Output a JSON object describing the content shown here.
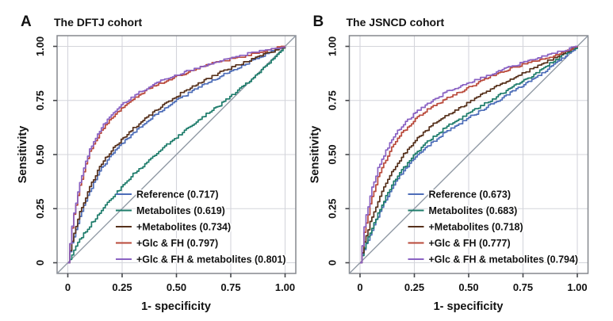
{
  "style": {
    "background": "#ffffff",
    "grid_color": "#d4d5db",
    "box_color": "#85888e",
    "diagonal_color": "#919aa5",
    "text_color": "#121212"
  },
  "chart_data": [
    {
      "type": "line",
      "subtype": "roc-curve",
      "panel_letter": "A",
      "title": "The DFTJ cohort",
      "xlabel": "1- specificity",
      "ylabel": "Sensitivity",
      "xlim": [
        0,
        1
      ],
      "ylim": [
        0,
        1
      ],
      "tick_values": [
        0,
        0.25,
        0.5,
        0.75,
        1
      ],
      "xtick_labels": [
        "0",
        "0.25",
        "0.50",
        "0.75",
        "1.00"
      ],
      "ytick_labels": [
        "0",
        "0.25",
        "0.50",
        "0.75",
        "1.00"
      ],
      "grid": true,
      "diagonal_reference_line": true,
      "legend_position": "inside-bottom-right",
      "series": [
        {
          "name": "Reference",
          "auc": 0.717,
          "legend_label": "Reference (0.717)",
          "color": "#4d6db8",
          "points": [
            [
              0,
              0
            ],
            [
              0.01,
              0.05
            ],
            [
              0.02,
              0.1
            ],
            [
              0.05,
              0.2
            ],
            [
              0.08,
              0.28
            ],
            [
              0.1,
              0.33
            ],
            [
              0.15,
              0.43
            ],
            [
              0.2,
              0.5
            ],
            [
              0.25,
              0.55
            ],
            [
              0.3,
              0.6
            ],
            [
              0.35,
              0.64
            ],
            [
              0.4,
              0.68
            ],
            [
              0.5,
              0.75
            ],
            [
              0.6,
              0.81
            ],
            [
              0.7,
              0.86
            ],
            [
              0.8,
              0.91
            ],
            [
              0.9,
              0.96
            ],
            [
              1,
              1
            ]
          ]
        },
        {
          "name": "Metabolites",
          "auc": 0.619,
          "legend_label": "Metabolites (0.619)",
          "color": "#1e7c6b",
          "points": [
            [
              0,
              0
            ],
            [
              0.01,
              0.02
            ],
            [
              0.02,
              0.04
            ],
            [
              0.05,
              0.1
            ],
            [
              0.1,
              0.17
            ],
            [
              0.15,
              0.24
            ],
            [
              0.2,
              0.3
            ],
            [
              0.25,
              0.35
            ],
            [
              0.3,
              0.41
            ],
            [
              0.35,
              0.45
            ],
            [
              0.4,
              0.5
            ],
            [
              0.5,
              0.58
            ],
            [
              0.6,
              0.66
            ],
            [
              0.7,
              0.73
            ],
            [
              0.8,
              0.81
            ],
            [
              0.9,
              0.9
            ],
            [
              1,
              1
            ]
          ]
        },
        {
          "name": "+Metabolites",
          "auc": 0.734,
          "legend_label": "+Metabolites (0.734)",
          "color": "#56301b",
          "points": [
            [
              0,
              0
            ],
            [
              0.01,
              0.06
            ],
            [
              0.02,
              0.11
            ],
            [
              0.05,
              0.22
            ],
            [
              0.08,
              0.3
            ],
            [
              0.1,
              0.35
            ],
            [
              0.15,
              0.45
            ],
            [
              0.2,
              0.52
            ],
            [
              0.25,
              0.57
            ],
            [
              0.3,
              0.62
            ],
            [
              0.35,
              0.66
            ],
            [
              0.4,
              0.7
            ],
            [
              0.5,
              0.77
            ],
            [
              0.6,
              0.83
            ],
            [
              0.7,
              0.88
            ],
            [
              0.8,
              0.92
            ],
            [
              0.9,
              0.96
            ],
            [
              1,
              1
            ]
          ]
        },
        {
          "name": "+Glc & FH",
          "auc": 0.797,
          "legend_label": "+Glc & FH (0.797)",
          "color": "#b9493a",
          "points": [
            [
              0,
              0
            ],
            [
              0.01,
              0.09
            ],
            [
              0.02,
              0.18
            ],
            [
              0.05,
              0.34
            ],
            [
              0.08,
              0.45
            ],
            [
              0.1,
              0.51
            ],
            [
              0.15,
              0.61
            ],
            [
              0.2,
              0.67
            ],
            [
              0.25,
              0.72
            ],
            [
              0.3,
              0.76
            ],
            [
              0.35,
              0.79
            ],
            [
              0.4,
              0.82
            ],
            [
              0.5,
              0.86
            ],
            [
              0.6,
              0.9
            ],
            [
              0.7,
              0.93
            ],
            [
              0.8,
              0.95
            ],
            [
              0.9,
              0.98
            ],
            [
              1,
              1
            ]
          ]
        },
        {
          "name": "+Glc & FH & metabolites",
          "auc": 0.801,
          "legend_label": "+Glc & FH & metabolites (0.801)",
          "color": "#8a62c3",
          "points": [
            [
              0,
              0
            ],
            [
              0.01,
              0.1
            ],
            [
              0.02,
              0.19
            ],
            [
              0.05,
              0.35
            ],
            [
              0.08,
              0.46
            ],
            [
              0.1,
              0.52
            ],
            [
              0.15,
              0.62
            ],
            [
              0.2,
              0.68
            ],
            [
              0.25,
              0.73
            ],
            [
              0.3,
              0.77
            ],
            [
              0.35,
              0.8
            ],
            [
              0.4,
              0.83
            ],
            [
              0.5,
              0.87
            ],
            [
              0.6,
              0.9
            ],
            [
              0.7,
              0.93
            ],
            [
              0.8,
              0.96
            ],
            [
              0.9,
              0.98
            ],
            [
              1,
              1
            ]
          ]
        }
      ]
    },
    {
      "type": "line",
      "subtype": "roc-curve",
      "panel_letter": "B",
      "title": "The JSNCD cohort",
      "xlabel": "1- specificity",
      "ylabel": "Sensitivity",
      "xlim": [
        0,
        1
      ],
      "ylim": [
        0,
        1
      ],
      "tick_values": [
        0,
        0.25,
        0.5,
        0.75,
        1
      ],
      "xtick_labels": [
        "0",
        "0.25",
        "0.50",
        "0.75",
        "1.00"
      ],
      "ytick_labels": [
        "0",
        "0.25",
        "0.50",
        "0.75",
        "1.00"
      ],
      "grid": true,
      "diagonal_reference_line": true,
      "legend_position": "inside-bottom-right",
      "series": [
        {
          "name": "Reference",
          "auc": 0.673,
          "legend_label": "Reference (0.673)",
          "color": "#4d6db8",
          "points": [
            [
              0,
              0
            ],
            [
              0.01,
              0.04
            ],
            [
              0.02,
              0.07
            ],
            [
              0.05,
              0.14
            ],
            [
              0.1,
              0.26
            ],
            [
              0.15,
              0.35
            ],
            [
              0.2,
              0.43
            ],
            [
              0.25,
              0.48
            ],
            [
              0.3,
              0.53
            ],
            [
              0.35,
              0.57
            ],
            [
              0.4,
              0.61
            ],
            [
              0.5,
              0.67
            ],
            [
              0.6,
              0.73
            ],
            [
              0.7,
              0.79
            ],
            [
              0.8,
              0.85
            ],
            [
              0.9,
              0.92
            ],
            [
              1,
              1
            ]
          ]
        },
        {
          "name": "Metabolites",
          "auc": 0.683,
          "legend_label": "Metabolites (0.683)",
          "color": "#1e7c6b",
          "points": [
            [
              0,
              0
            ],
            [
              0.01,
              0.04
            ],
            [
              0.02,
              0.08
            ],
            [
              0.05,
              0.15
            ],
            [
              0.1,
              0.27
            ],
            [
              0.15,
              0.37
            ],
            [
              0.2,
              0.44
            ],
            [
              0.25,
              0.5
            ],
            [
              0.3,
              0.55
            ],
            [
              0.35,
              0.59
            ],
            [
              0.4,
              0.63
            ],
            [
              0.5,
              0.69
            ],
            [
              0.6,
              0.75
            ],
            [
              0.7,
              0.81
            ],
            [
              0.8,
              0.87
            ],
            [
              0.9,
              0.94
            ],
            [
              1,
              1
            ]
          ]
        },
        {
          "name": "+Metabolites",
          "auc": 0.718,
          "legend_label": "+Metabolites (0.718)",
          "color": "#56301b",
          "points": [
            [
              0,
              0
            ],
            [
              0.01,
              0.05
            ],
            [
              0.02,
              0.1
            ],
            [
              0.05,
              0.2
            ],
            [
              0.1,
              0.33
            ],
            [
              0.15,
              0.43
            ],
            [
              0.2,
              0.5
            ],
            [
              0.25,
              0.56
            ],
            [
              0.3,
              0.61
            ],
            [
              0.35,
              0.65
            ],
            [
              0.4,
              0.68
            ],
            [
              0.5,
              0.74
            ],
            [
              0.6,
              0.8
            ],
            [
              0.7,
              0.85
            ],
            [
              0.8,
              0.9
            ],
            [
              0.9,
              0.95
            ],
            [
              1,
              1
            ]
          ]
        },
        {
          "name": "+Glc & FH",
          "auc": 0.777,
          "legend_label": "+Glc & FH (0.777)",
          "color": "#b9493a",
          "points": [
            [
              0,
              0
            ],
            [
              0.01,
              0.08
            ],
            [
              0.02,
              0.15
            ],
            [
              0.05,
              0.29
            ],
            [
              0.08,
              0.39
            ],
            [
              0.1,
              0.44
            ],
            [
              0.15,
              0.54
            ],
            [
              0.2,
              0.61
            ],
            [
              0.25,
              0.66
            ],
            [
              0.3,
              0.7
            ],
            [
              0.35,
              0.73
            ],
            [
              0.4,
              0.76
            ],
            [
              0.5,
              0.81
            ],
            [
              0.6,
              0.86
            ],
            [
              0.7,
              0.9
            ],
            [
              0.8,
              0.93
            ],
            [
              0.9,
              0.96
            ],
            [
              1,
              1
            ]
          ]
        },
        {
          "name": "+Glc & FH & metabolites",
          "auc": 0.794,
          "legend_label": "+Glc & FH & metabolites (0.794)",
          "color": "#8a62c3",
          "points": [
            [
              0,
              0
            ],
            [
              0.01,
              0.09
            ],
            [
              0.02,
              0.18
            ],
            [
              0.05,
              0.33
            ],
            [
              0.08,
              0.43
            ],
            [
              0.1,
              0.48
            ],
            [
              0.15,
              0.58
            ],
            [
              0.2,
              0.64
            ],
            [
              0.25,
              0.69
            ],
            [
              0.3,
              0.73
            ],
            [
              0.35,
              0.76
            ],
            [
              0.4,
              0.79
            ],
            [
              0.5,
              0.83
            ],
            [
              0.6,
              0.87
            ],
            [
              0.7,
              0.91
            ],
            [
              0.8,
              0.94
            ],
            [
              0.9,
              0.97
            ],
            [
              1,
              1
            ]
          ]
        }
      ]
    }
  ]
}
